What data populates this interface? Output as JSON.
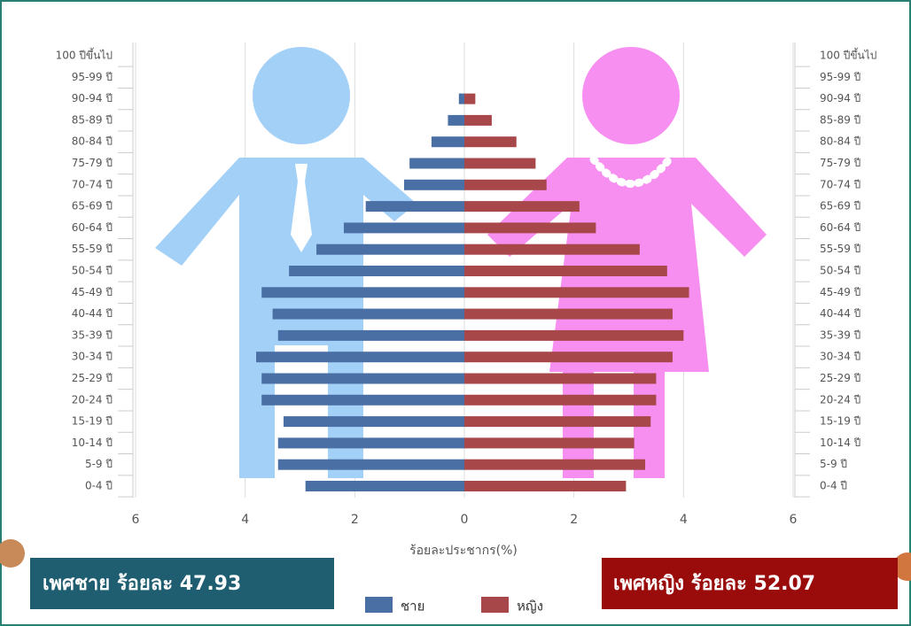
{
  "chart_data": {
    "type": "population-pyramid",
    "categories": [
      "0-4 ปี",
      "5-9 ปี",
      "10-14 ปี",
      "15-19 ปี",
      "20-24 ปี",
      "25-29 ปี",
      "30-34 ปี",
      "35-39 ปี",
      "40-44 ปี",
      "45-49 ปี",
      "50-54 ปี",
      "55-59 ปี",
      "60-64 ปี",
      "65-69 ปี",
      "70-74 ปี",
      "75-79 ปี",
      "80-84 ปี",
      "85-89 ปี",
      "90-94 ปี",
      "95-99 ปี",
      "100 ปีขึ้นไป"
    ],
    "series": [
      {
        "name": "ชาย",
        "color": "#4a6fa5",
        "values": [
          2.9,
          3.4,
          3.4,
          3.3,
          3.7,
          3.7,
          3.8,
          3.4,
          3.5,
          3.7,
          3.2,
          2.7,
          2.2,
          1.8,
          1.1,
          1.0,
          0.6,
          0.3,
          0.1,
          0,
          0
        ]
      },
      {
        "name": "หญิง",
        "color": "#a8474a",
        "values": [
          2.95,
          3.3,
          3.1,
          3.4,
          3.5,
          3.5,
          3.8,
          4.0,
          3.8,
          4.1,
          3.7,
          3.2,
          2.4,
          2.1,
          1.5,
          1.3,
          0.95,
          0.5,
          0.2,
          0,
          0
        ]
      }
    ],
    "x_label": "ร้อยละประชากร(%)",
    "xlim": [
      -6,
      6
    ],
    "xticks": [
      {
        "value": -6,
        "label": "6"
      },
      {
        "value": -4,
        "label": "4"
      },
      {
        "value": -2,
        "label": "2"
      },
      0,
      2,
      4,
      6
    ],
    "grid": true,
    "annotations": [
      "เพศชาย ร้อยละ 47.93",
      "เพศหญิง ร้อยละ 52.07"
    ],
    "annotation_colors": [
      "#1e5e70",
      "#9a0c0c"
    ]
  }
}
